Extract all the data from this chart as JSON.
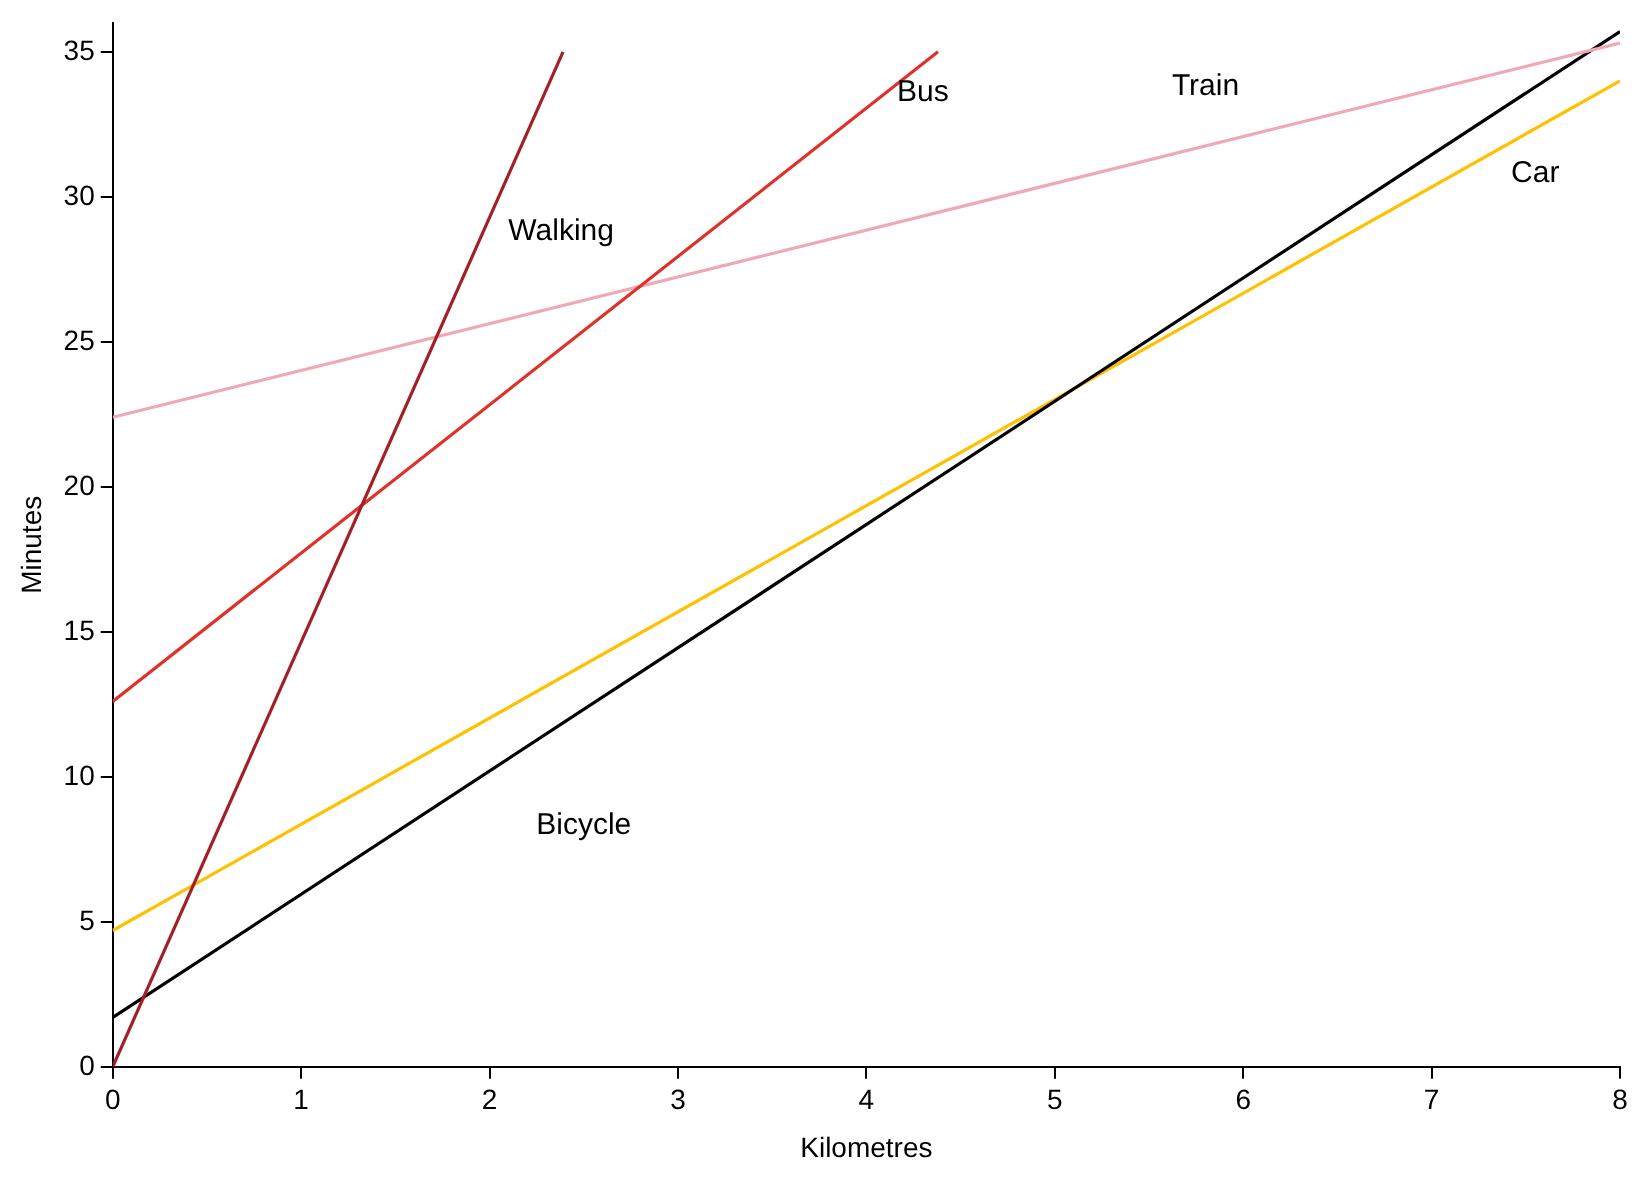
{
  "chart_data": {
    "type": "line",
    "xlabel": "Kilometres",
    "ylabel": "Minutes",
    "xlim": [
      0,
      8
    ],
    "xticks": [
      0,
      1,
      2,
      3,
      4,
      5,
      6,
      7,
      8
    ],
    "ylim": [
      0,
      36
    ],
    "yticks": [
      0,
      5,
      10,
      15,
      20,
      25,
      30,
      35
    ],
    "grid": false,
    "legend": false,
    "series": [
      {
        "name": "Walking",
        "color": "#a31f24",
        "x": [
          0,
          2.39
        ],
        "values": [
          0,
          35
        ]
      },
      {
        "name": "Bus",
        "color": "#e0302a",
        "x": [
          0,
          4.38
        ],
        "values": [
          12.6,
          35
        ]
      },
      {
        "name": "Train",
        "color": "#f0a8b4",
        "x": [
          0,
          8
        ],
        "values": [
          22.4,
          35.3
        ]
      },
      {
        "name": "Bicycle",
        "color": "#000000",
        "x": [
          0,
          8
        ],
        "values": [
          1.7,
          35.7
        ]
      },
      {
        "name": "Car",
        "color": "#ffc000",
        "x": [
          0,
          8
        ],
        "values": [
          4.7,
          34
        ]
      }
    ]
  }
}
